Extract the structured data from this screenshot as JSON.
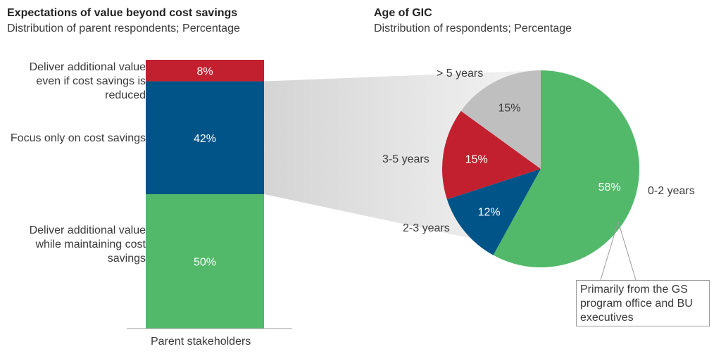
{
  "chart_data": [
    {
      "type": "bar",
      "title": "Expectations of value beyond cost savings",
      "subtitle": "Distribution of parent respondents; Percentage",
      "categories": [
        "Parent stakeholders"
      ],
      "stacked": true,
      "series": [
        {
          "name": "Deliver additional value while maintaining cost savings",
          "values": [
            50
          ],
          "label": "50%",
          "color": "#52b96a"
        },
        {
          "name": "Focus only on cost savings",
          "values": [
            42
          ],
          "label": "42%",
          "color": "#005487"
        },
        {
          "name": "Deliver additional value even if cost savings is reduced",
          "values": [
            8
          ],
          "label": "8%",
          "color": "#c3202f"
        }
      ],
      "ylim": [
        0,
        100
      ]
    },
    {
      "type": "pie",
      "title": "Age of GIC",
      "subtitle": "Distribution of respondents; Percentage",
      "slices": [
        {
          "name": "0-2 years",
          "value": 58,
          "label": "58%",
          "color": "#52b96a"
        },
        {
          "name": "2-3 years",
          "value": 12,
          "label": "12%",
          "color": "#005487"
        },
        {
          "name": "3-5 years",
          "value": 15,
          "label": "15%",
          "color": "#c3202f"
        },
        {
          "name": "> 5 years",
          "value": 15,
          "label": "15%",
          "color": "#bfbfbf"
        }
      ],
      "annotation": "Primarily from the GS program office and BU executives"
    }
  ]
}
